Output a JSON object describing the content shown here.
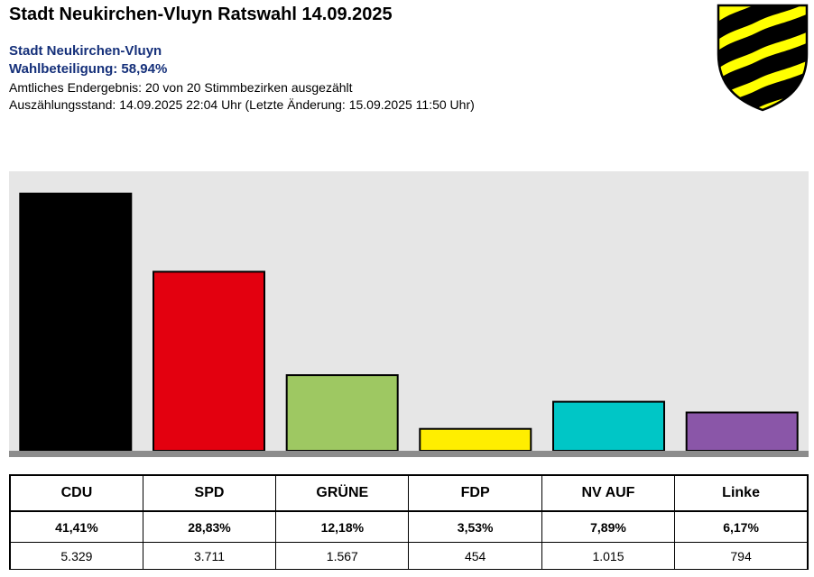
{
  "header": {
    "title": "Stadt Neukirchen-Vluyn Ratswahl 14.09.2025",
    "subtitle": "Stadt Neukirchen-Vluyn",
    "turnout": "Wahlbeteiligung: 58,94%",
    "status": "Amtliches Endergebnis: 20 von 20 Stimmbezirken ausgezählt",
    "count_state": "Auszählungsstand: 14.09.2025 22:04 Uhr (Letzte Änderung: 15.09.2025 11:50 Uhr)"
  },
  "crest": {
    "colors": [
      "#000000",
      "#ffff00"
    ]
  },
  "chart_data": {
    "type": "bar",
    "categories": [
      "CDU",
      "SPD",
      "GRÜNE",
      "FDP",
      "NV AUF",
      "Linke"
    ],
    "values": [
      41.41,
      28.83,
      12.18,
      3.53,
      7.89,
      6.17
    ],
    "colors": [
      "#000000",
      "#e3000f",
      "#9ec862",
      "#ffee00",
      "#00c6c6",
      "#8a56a8"
    ],
    "ylim": [
      0,
      45
    ],
    "grid": false,
    "background": "#e6e6e6"
  },
  "table": {
    "parties": [
      "CDU",
      "SPD",
      "GRÜNE",
      "FDP",
      "NV AUF",
      "Linke"
    ],
    "percentages": [
      "41,41%",
      "28,83%",
      "12,18%",
      "3,53%",
      "7,89%",
      "6,17%"
    ],
    "votes": [
      "5.329",
      "3.711",
      "1.567",
      "454",
      "1.015",
      "794"
    ]
  }
}
